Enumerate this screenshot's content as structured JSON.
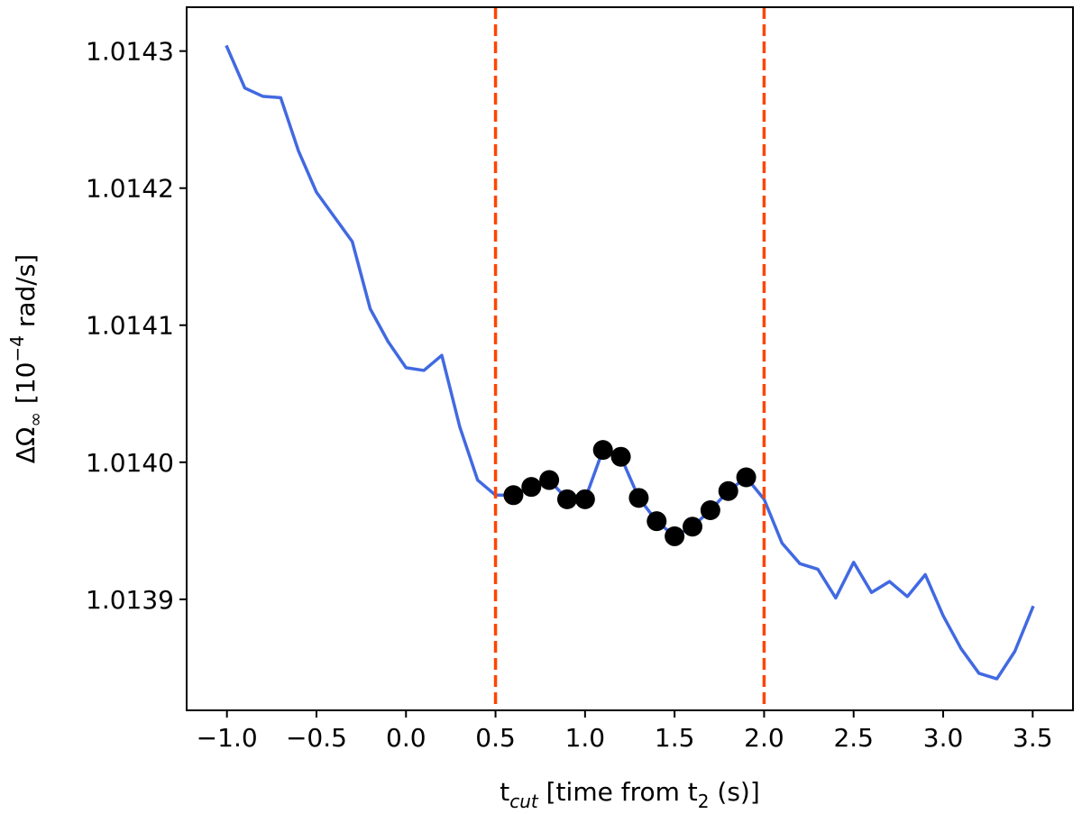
{
  "chart_data": {
    "type": "line",
    "xlabel": "t_cut [time from t_2 (s)]",
    "xlabel_parts": {
      "main": "t",
      "sub": "cut",
      "rest": " [time from t",
      "sub2": "2",
      "end": " (s)]"
    },
    "ylabel": "ΔΩ∞ [10^-4 rad/s]",
    "ylabel_parts": {
      "main": "ΔΩ",
      "sub": "∞",
      "mid": " [10",
      "sup": "−4",
      "end": " rad/s]"
    },
    "xlim": [
      -1.225,
      3.725
    ],
    "ylim": [
      1.013819,
      1.014332
    ],
    "x_ticks": [
      -1.0,
      -0.5,
      0.0,
      0.5,
      1.0,
      1.5,
      2.0,
      2.5,
      3.0,
      3.5
    ],
    "x_tick_labels": [
      "−1.0",
      "−0.5",
      "0.0",
      "0.5",
      "1.0",
      "1.5",
      "2.0",
      "2.5",
      "3.0",
      "3.5"
    ],
    "y_ticks": [
      1.0139,
      1.014,
      1.0141,
      1.0142,
      1.0143
    ],
    "y_tick_labels": [
      "1.0139",
      "1.0140",
      "1.0141",
      "1.0142",
      "1.0143"
    ],
    "grid": false,
    "series": [
      {
        "kind": "line",
        "color": "#4169e1",
        "x": [
          -1.0,
          -0.9,
          -0.8,
          -0.7,
          -0.6,
          -0.5,
          -0.4,
          -0.3,
          -0.2,
          -0.1,
          0.0,
          0.1,
          0.2,
          0.3,
          0.4,
          0.5,
          0.6,
          0.7,
          0.8,
          0.9,
          1.0,
          1.1,
          1.2,
          1.3,
          1.4,
          1.5,
          1.6,
          1.7,
          1.8,
          1.9,
          2.0,
          2.1,
          2.2,
          2.3,
          2.4,
          2.5,
          2.6,
          2.7,
          2.8,
          2.9,
          3.0,
          3.1,
          3.2,
          3.3,
          3.4,
          3.5
        ],
        "y": [
          1.014303,
          1.014273,
          1.014267,
          1.014266,
          1.014227,
          1.014197,
          1.014179,
          1.014161,
          1.014112,
          1.014088,
          1.014069,
          1.014067,
          1.014078,
          1.014026,
          1.013987,
          1.013976,
          1.013976,
          1.013982,
          1.013987,
          1.013973,
          1.013973,
          1.014009,
          1.014004,
          1.013974,
          1.013957,
          1.013946,
          1.013953,
          1.013965,
          1.013979,
          1.013989,
          1.013973,
          1.013941,
          1.013926,
          1.013922,
          1.013901,
          1.013927,
          1.013905,
          1.013913,
          1.013902,
          1.013918,
          1.013888,
          1.013864,
          1.013846,
          1.013842,
          1.013862,
          1.013894
        ]
      },
      {
        "kind": "scatter",
        "color": "#000000",
        "x": [
          0.6,
          0.7,
          0.8,
          0.9,
          1.0,
          1.1,
          1.2,
          1.3,
          1.4,
          1.5,
          1.6,
          1.7,
          1.8,
          1.9
        ],
        "y": [
          1.013976,
          1.013982,
          1.013987,
          1.013973,
          1.013973,
          1.014009,
          1.014004,
          1.013974,
          1.013957,
          1.013946,
          1.013953,
          1.013965,
          1.013979,
          1.013989
        ]
      }
    ],
    "vlines": [
      {
        "x": 0.5,
        "color": "#ff4500",
        "style": "dashed"
      },
      {
        "x": 2.0,
        "color": "#ff4500",
        "style": "dashed"
      }
    ]
  }
}
